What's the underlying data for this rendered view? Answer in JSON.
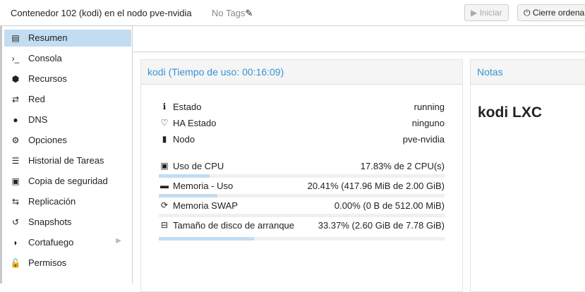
{
  "header": {
    "title": "Contenedor 102 (kodi) en el nodo pve-nvidia",
    "tags": "No Tags",
    "start_label": "Iniciar",
    "shutdown_label": "Cierre ordena"
  },
  "sidebar": {
    "items": [
      {
        "label": "Resumen",
        "icon": "book-icon",
        "glyph": "▤",
        "selected": true
      },
      {
        "label": "Consola",
        "icon": "terminal-icon",
        "glyph": "›_"
      },
      {
        "label": "Recursos",
        "icon": "cube-icon",
        "glyph": "⬢"
      },
      {
        "label": "Red",
        "icon": "exchange-icon",
        "glyph": "⇄"
      },
      {
        "label": "DNS",
        "icon": "globe-icon",
        "glyph": "●"
      },
      {
        "label": "Opciones",
        "icon": "gear-icon",
        "glyph": "⚙"
      },
      {
        "label": "Historial de Tareas",
        "icon": "list-icon",
        "glyph": "☰"
      },
      {
        "label": "Copia de seguridad",
        "icon": "floppy-icon",
        "glyph": "▣"
      },
      {
        "label": "Replicación",
        "icon": "retweet-icon",
        "glyph": "⇆"
      },
      {
        "label": "Snapshots",
        "icon": "history-icon",
        "glyph": "↺"
      },
      {
        "label": "Cortafuego",
        "icon": "shield-icon",
        "glyph": "◗"
      },
      {
        "label": "Permisos",
        "icon": "unlock-icon",
        "glyph": "🔓"
      }
    ]
  },
  "status": {
    "title": "kodi (Tiempo de uso: 00:16:09)",
    "info": [
      {
        "label": "Estado",
        "value": "running",
        "icon": "info-icon",
        "glyph": "ℹ"
      },
      {
        "label": "HA Estado",
        "value": "ninguno",
        "icon": "heartbeat-icon",
        "glyph": "♡"
      },
      {
        "label": "Nodo",
        "value": "pve-nvidia",
        "icon": "building-icon",
        "glyph": "▮"
      }
    ],
    "usage": [
      {
        "label": "Uso de CPU",
        "value": "17.83% de 2 CPU(s)",
        "percent": 17.83,
        "icon": "cpu-icon",
        "glyph": "▣"
      },
      {
        "label": "Memoria - Uso",
        "value": "20.41% (417.96 MiB de 2.00 GiB)",
        "percent": 20.41,
        "icon": "memory-icon",
        "glyph": "▬"
      },
      {
        "label": "Memoria SWAP",
        "value": "0.00% (0 B de 512.00 MiB)",
        "percent": 0,
        "icon": "refresh-icon",
        "glyph": "⟳"
      },
      {
        "label": "Tamaño de disco de arranque",
        "value": "33.37% (2.60 GiB de 7.78 GiB)",
        "percent": 33.37,
        "icon": "hdd-icon",
        "glyph": "⊟"
      }
    ]
  },
  "notes": {
    "title": "Notas",
    "content": "kodi LXC"
  }
}
